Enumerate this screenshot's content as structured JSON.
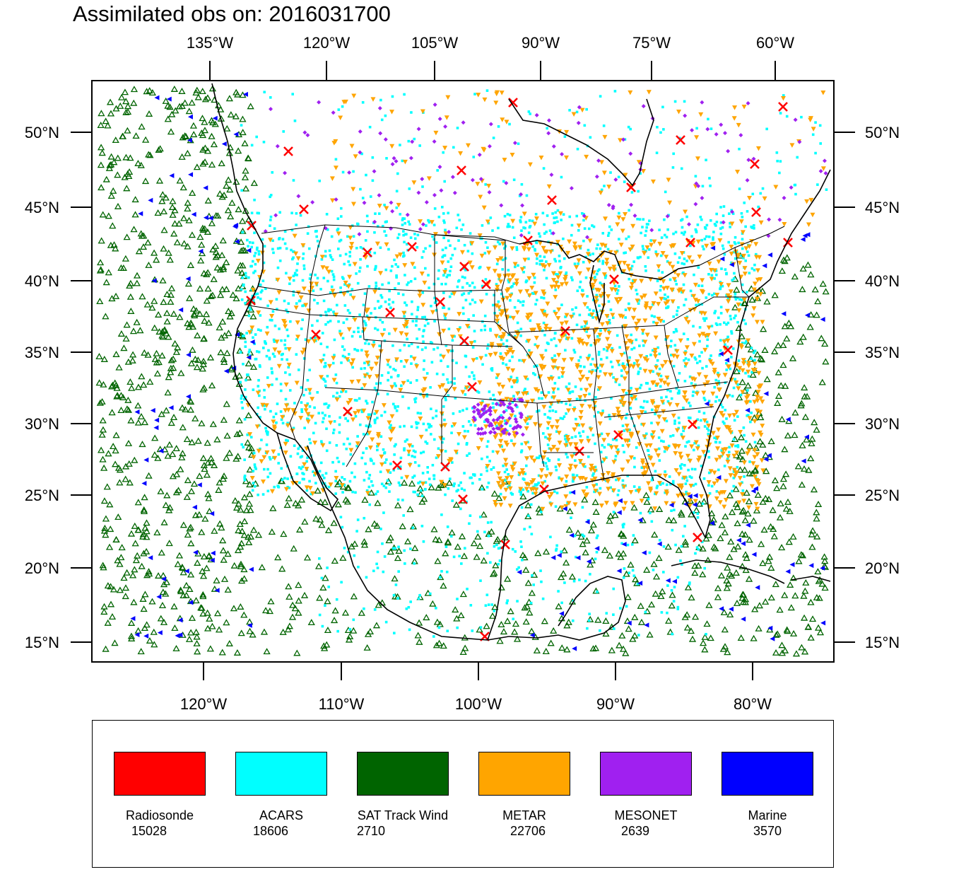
{
  "title": "Assimilated obs on: 2016031700",
  "map": {
    "projection": "Lambert conformal",
    "top_lon_labels": [
      "135°W",
      "120°W",
      "105°W",
      "90°W",
      "75°W",
      "60°W"
    ],
    "bottom_lon_labels": [
      "120°W",
      "110°W",
      "100°W",
      "90°W",
      "80°W"
    ],
    "left_lat_labels": [
      "50°N",
      "45°N",
      "40°N",
      "35°N",
      "30°N",
      "25°N",
      "20°N",
      "15°N"
    ],
    "right_lat_labels": [
      "50°N",
      "45°N",
      "40°N",
      "35°N",
      "30°N",
      "25°N",
      "20°N",
      "15°N"
    ],
    "coastline_color": "#000000"
  },
  "legend": [
    {
      "name": "Radiosonde",
      "count": "15028",
      "color": "#ff0000",
      "marker": "x-icon"
    },
    {
      "name": "ACARS",
      "count": "18606",
      "color": "#00ffff",
      "marker": "square-dot-icon"
    },
    {
      "name": "SAT Track Wind",
      "count": "2710",
      "color": "#006400",
      "marker": "triangle-up-icon"
    },
    {
      "name": "METAR",
      "count": "22706",
      "color": "#ffa500",
      "marker": "triangle-down-icon"
    },
    {
      "name": "MESONET",
      "count": "2639",
      "color": "#a020f0",
      "marker": "diamond-icon"
    },
    {
      "name": "Marine",
      "count": "3570",
      "color": "#0000ff",
      "marker": "triangle-left-icon"
    }
  ]
}
